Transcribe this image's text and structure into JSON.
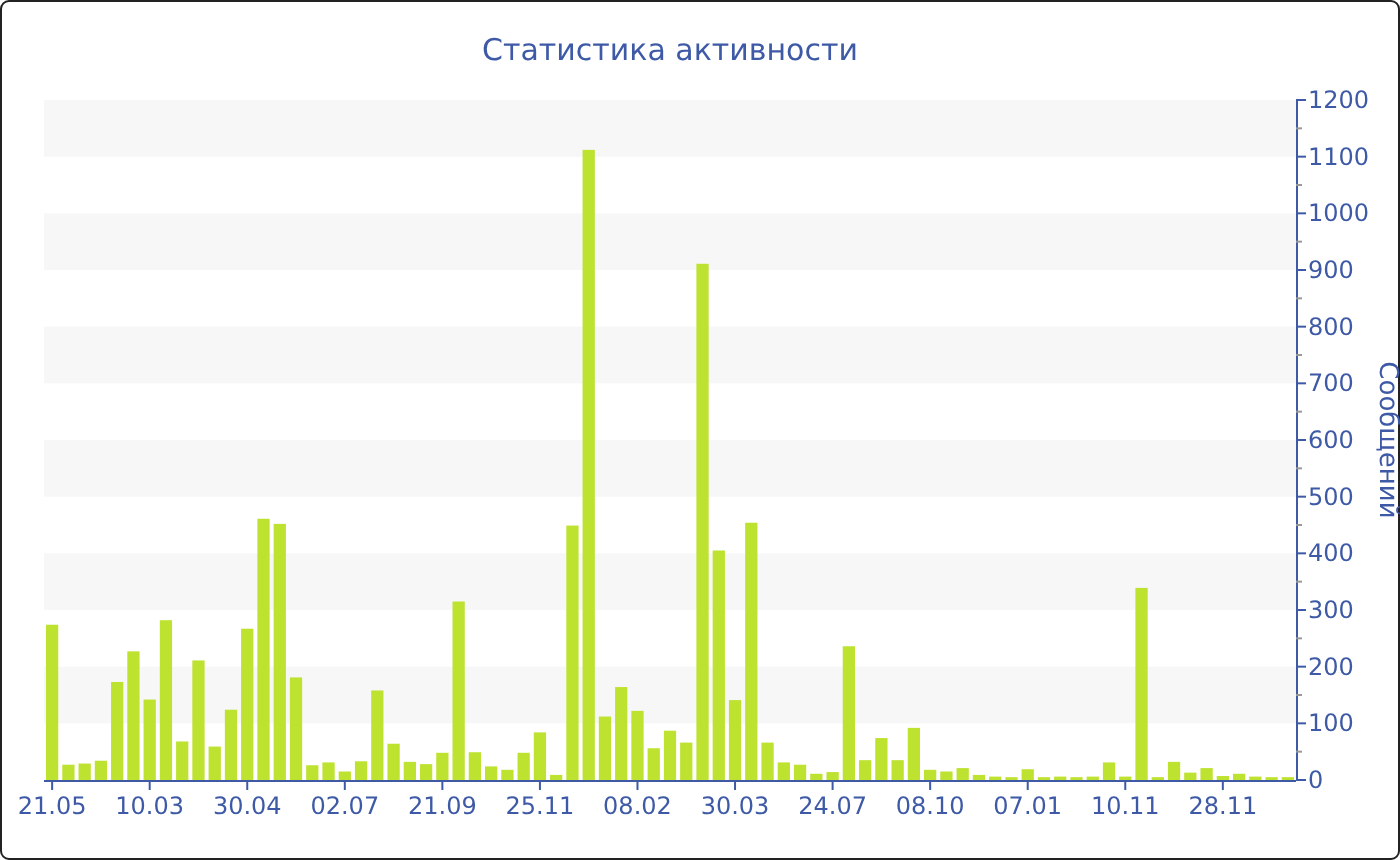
{
  "chart_data": {
    "type": "bar",
    "title": "Статистика активности",
    "ylabel": "Сообщений",
    "categories": [
      "21.05",
      null,
      null,
      null,
      null,
      null,
      "10.03",
      null,
      null,
      null,
      null,
      null,
      "30.04",
      null,
      null,
      null,
      null,
      null,
      "02.07",
      null,
      null,
      null,
      null,
      null,
      "21.09",
      null,
      null,
      null,
      null,
      null,
      "25.11",
      null,
      null,
      null,
      null,
      null,
      "08.02",
      null,
      null,
      null,
      null,
      null,
      "30.03",
      null,
      null,
      null,
      null,
      null,
      "24.07",
      null,
      null,
      null,
      null,
      null,
      "08.10",
      null,
      null,
      null,
      null,
      null,
      "07.01",
      null,
      null,
      null,
      null,
      null,
      "10.11",
      null,
      null,
      null,
      null,
      null,
      "28.11",
      null,
      null,
      null,
      null
    ],
    "values": [
      274,
      27,
      29,
      34,
      173,
      227,
      142,
      282,
      68,
      211,
      59,
      124,
      267,
      461,
      452,
      181,
      26,
      31,
      15,
      33,
      158,
      64,
      32,
      28,
      48,
      315,
      49,
      24,
      18,
      48,
      84,
      9,
      449,
      1112,
      112,
      164,
      122,
      56,
      87,
      66,
      911,
      405,
      141,
      454,
      66,
      31,
      27,
      11,
      14,
      236,
      35,
      74,
      35,
      92,
      18,
      15,
      21,
      9,
      6,
      5,
      19,
      5,
      6,
      5,
      6,
      31,
      6,
      339,
      5,
      32,
      13,
      21,
      7,
      11,
      6,
      5,
      5
    ],
    "color": "#bde22f",
    "ylim": [
      0,
      1200
    ],
    "yticks": [
      0,
      100,
      200,
      300,
      400,
      500,
      600,
      700,
      800,
      900,
      1000,
      1100,
      1200
    ],
    "bands": [
      {
        "axis": "y",
        "from": 100,
        "to": 200,
        "color": "#f7f7f7"
      },
      {
        "axis": "y",
        "from": 300,
        "to": 400,
        "color": "#f7f7f7"
      },
      {
        "axis": "y",
        "from": 500,
        "to": 600,
        "color": "#f7f7f7"
      },
      {
        "axis": "y",
        "from": 700,
        "to": 800,
        "color": "#f7f7f7"
      },
      {
        "axis": "y",
        "from": 900,
        "to": 1000,
        "color": "#f7f7f7"
      },
      {
        "axis": "y",
        "from": 1100,
        "to": 1200,
        "color": "#f7f7f7"
      }
    ]
  }
}
